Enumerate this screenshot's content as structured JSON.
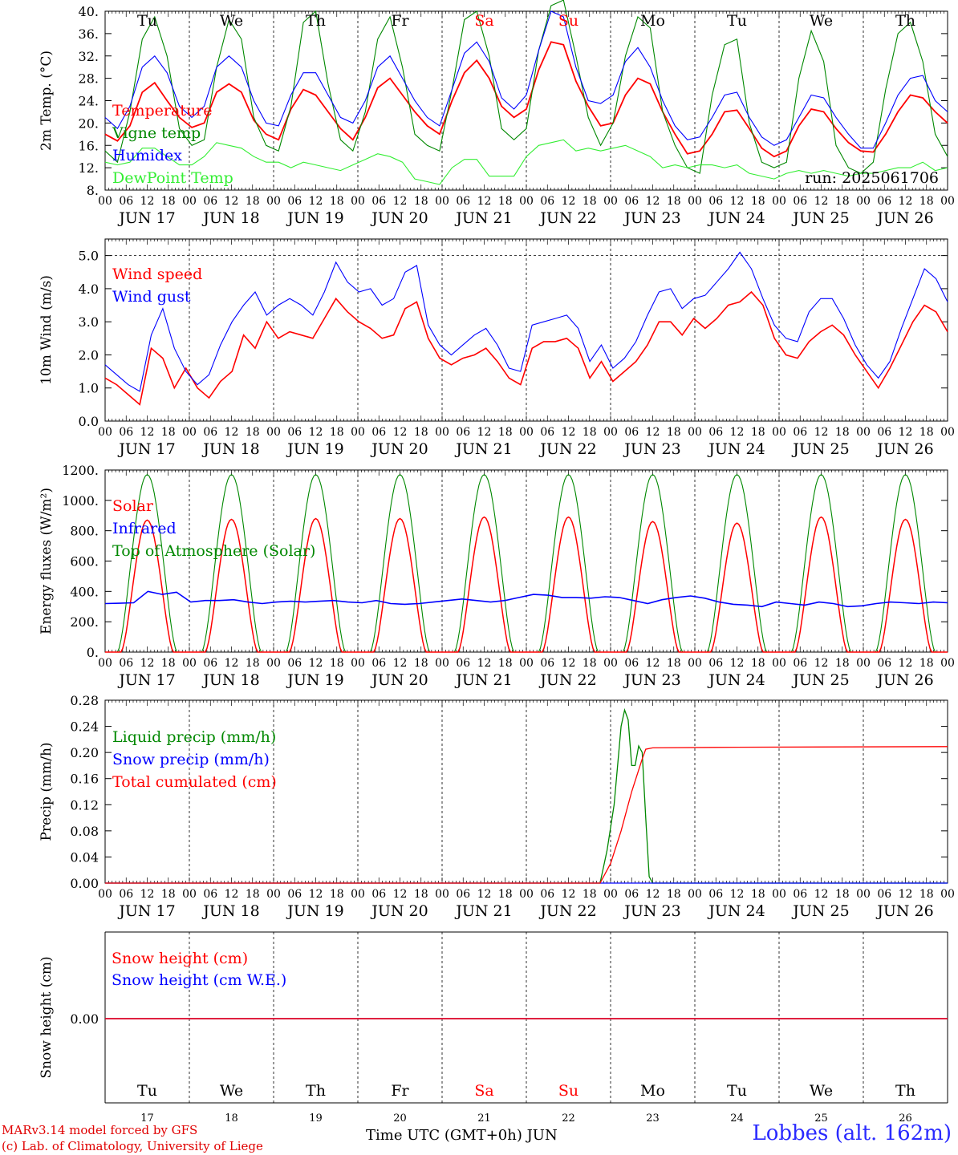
{
  "footer": {
    "model": "MARv3.14 model forced by GFS",
    "lab": "(c) Lab. of Climatology, University of Liege",
    "axis_label": "Time UTC (GMT+0h) JUN",
    "station": "Lobbes (alt. 162m)"
  },
  "colors": {
    "red": "#ff0000",
    "green": "#008800",
    "blue": "#0000ff",
    "lightgreen": "#33ee33",
    "weekend": "#ff0000"
  },
  "chart_data": [
    {
      "type": "line",
      "ylabel": "2m Temp. (°C)",
      "ylim": [
        8,
        40
      ],
      "yticks": [
        "8.",
        "12.",
        "16.",
        "20.",
        "24.",
        "28.",
        "32.",
        "36.",
        "40."
      ],
      "weekday_labels_top": [
        "Tu",
        "We",
        "Th",
        "Fr",
        "Sa",
        "Su",
        "Mo",
        "Tu",
        "We",
        "Th"
      ],
      "annotation": "run: 2025061706",
      "x_hours": "0 to 240 every 6 hours from JUN 17 00 UTC",
      "series": [
        {
          "name": "Temperature",
          "color": "red",
          "values": [
            18,
            16.8,
            19.5,
            25.5,
            27.2,
            24,
            21,
            19.2,
            20,
            25.5,
            27,
            25.5,
            20.5,
            18,
            17,
            22.5,
            26,
            25,
            22,
            19,
            17,
            21,
            26.3,
            28,
            25,
            22,
            19.5,
            18,
            24,
            29,
            31.2,
            28,
            23,
            21,
            22.5,
            29.5,
            34.5,
            34,
            27.5,
            23,
            19.5,
            20,
            25,
            28,
            27,
            22,
            18,
            14.5,
            15,
            18,
            22,
            22.3,
            19,
            15.5,
            14,
            15,
            19.5,
            22.5,
            22,
            19,
            16.5,
            15,
            14.8,
            18,
            22,
            25,
            24.5,
            22,
            20
          ]
        },
        {
          "name": "Vigne temp",
          "color": "green",
          "values": [
            15,
            13,
            22,
            35,
            39,
            32,
            19,
            16,
            17,
            30,
            38.5,
            35,
            21,
            16,
            15,
            23,
            38,
            40,
            27,
            17,
            15,
            22,
            35,
            39,
            30,
            18,
            16,
            15,
            26,
            38.5,
            40,
            32,
            19,
            17,
            19,
            33,
            41,
            42,
            32,
            21,
            16,
            20,
            32,
            39,
            37,
            22,
            16,
            12,
            11,
            25,
            34,
            35,
            20,
            13,
            12,
            13,
            28,
            36.5,
            31,
            16,
            12,
            11,
            13,
            26,
            36,
            38,
            31,
            18,
            14
          ]
        },
        {
          "name": "Humidex",
          "color": "blue",
          "values": [
            21,
            19,
            23,
            30,
            32,
            29,
            23,
            21,
            23,
            30,
            32,
            30,
            24,
            20,
            19.5,
            25,
            29,
            29,
            25,
            21,
            20,
            24,
            30,
            32,
            28,
            24,
            21,
            19.5,
            26,
            32.5,
            34.5,
            31,
            24.5,
            22.5,
            25,
            33,
            40,
            39,
            30,
            24,
            23.5,
            25,
            31,
            33.5,
            30,
            24,
            19.5,
            17,
            17.5,
            21,
            25,
            25.5,
            21,
            17.5,
            16,
            17,
            21,
            25,
            24.5,
            21,
            18,
            15.5,
            15.5,
            20,
            25,
            28,
            28.5,
            24,
            22
          ]
        },
        {
          "name": "DewPoint Temp",
          "color": "lightgreen",
          "values": [
            13,
            12.5,
            13,
            15.5,
            15.5,
            14,
            12.5,
            12.5,
            14,
            16.5,
            16,
            15.5,
            14,
            13,
            13,
            12,
            13,
            12.5,
            12,
            11.5,
            12.5,
            13.5,
            14.5,
            14,
            13,
            10,
            9.5,
            9,
            12,
            13.5,
            13.5,
            10.5,
            10.5,
            10.5,
            14,
            16,
            16.5,
            17,
            15,
            15.5,
            15,
            15.5,
            16,
            15,
            14,
            12,
            12.5,
            12,
            12.5,
            12.5,
            12,
            12.5,
            11,
            10.5,
            10,
            11,
            11.5,
            11,
            11.5,
            11,
            10.5,
            11,
            11,
            11.5,
            12,
            12,
            13,
            11.5,
            12
          ]
        }
      ]
    },
    {
      "type": "line",
      "ylabel": "10m Wind (m/s)",
      "ylim": [
        0,
        5.5
      ],
      "yticks": [
        "0.0",
        "1.0",
        "2.0",
        "3.0",
        "4.0",
        "5.0"
      ],
      "reference_line": 5.0,
      "series": [
        {
          "name": "Wind speed",
          "color": "red",
          "values": [
            1.3,
            1.1,
            0.8,
            0.5,
            2.2,
            1.9,
            1.0,
            1.6,
            1.0,
            0.7,
            1.2,
            1.5,
            2.6,
            2.2,
            3.0,
            2.5,
            2.7,
            2.6,
            2.5,
            3.1,
            3.7,
            3.3,
            3.0,
            2.8,
            2.5,
            2.6,
            3.4,
            3.6,
            2.5,
            1.9,
            1.7,
            1.9,
            2.0,
            2.2,
            1.8,
            1.3,
            1.1,
            2.2,
            2.4,
            2.4,
            2.5,
            2.2,
            1.3,
            1.8,
            1.2,
            1.5,
            1.8,
            2.3,
            3.0,
            3.0,
            2.6,
            3.1,
            2.8,
            3.1,
            3.5,
            3.6,
            3.9,
            3.5,
            2.5,
            2.0,
            1.9,
            2.4,
            2.7,
            2.9,
            2.6,
            2.0,
            1.5,
            1.0,
            1.6,
            2.3,
            3.0,
            3.5,
            3.3,
            2.7
          ]
        },
        {
          "name": "Wind gust",
          "color": "blue",
          "values": [
            1.7,
            1.4,
            1.1,
            0.9,
            2.6,
            3.4,
            2.2,
            1.5,
            1.1,
            1.4,
            2.3,
            3.0,
            3.5,
            3.9,
            3.2,
            3.5,
            3.7,
            3.5,
            3.2,
            3.9,
            4.8,
            4.2,
            3.9,
            4.0,
            3.5,
            3.7,
            4.5,
            4.7,
            2.9,
            2.3,
            2.0,
            2.3,
            2.6,
            2.8,
            2.3,
            1.6,
            1.5,
            2.9,
            3.0,
            3.1,
            3.2,
            2.8,
            1.8,
            2.3,
            1.6,
            1.9,
            2.4,
            3.2,
            3.9,
            4.0,
            3.4,
            3.7,
            3.8,
            4.2,
            4.6,
            5.1,
            4.6,
            3.7,
            2.9,
            2.5,
            2.4,
            3.3,
            3.7,
            3.7,
            3.1,
            2.3,
            1.7,
            1.3,
            1.8,
            2.8,
            3.7,
            4.6,
            4.3,
            3.6
          ]
        }
      ]
    },
    {
      "type": "line",
      "ylabel": "Energy fluxes (W/m²)",
      "ylim": [
        0,
        1200
      ],
      "yticks": [
        "0.",
        "200.",
        "400.",
        "600.",
        "800.",
        "1000.",
        "1200."
      ],
      "series": [
        {
          "name": "Solar",
          "color": "red",
          "daily_peak": [
            870,
            875,
            880,
            880,
            890,
            890,
            860,
            850,
            890,
            875
          ],
          "note": "diurnal cycle zero at night"
        },
        {
          "name": "Infrared",
          "color": "blue",
          "values": [
            320,
            322,
            325,
            400,
            380,
            395,
            330,
            340,
            340,
            345,
            330,
            320,
            330,
            335,
            330,
            335,
            340,
            330,
            325,
            340,
            320,
            315,
            320,
            330,
            340,
            350,
            340,
            330,
            340,
            360,
            380,
            375,
            360,
            360,
            355,
            365,
            360,
            340,
            320,
            345,
            360,
            370,
            355,
            330,
            315,
            310,
            300,
            330,
            320,
            310,
            330,
            320,
            300,
            305,
            320,
            330,
            325,
            320,
            330,
            325
          ]
        },
        {
          "name": "Top of Atmosphere (Solar)",
          "color": "green",
          "daily_peak": [
            1170,
            1170,
            1170,
            1170,
            1170,
            1170,
            1170,
            1170,
            1170,
            1170
          ],
          "note": "diurnal cycle zero at night"
        }
      ]
    },
    {
      "type": "line",
      "ylabel": "Precip (mm/h)",
      "ylim": [
        0,
        0.28
      ],
      "yticks": [
        "0.00",
        "0.04",
        "0.08",
        "0.12",
        "0.16",
        "0.20",
        "0.24",
        "0.28"
      ],
      "series": [
        {
          "name": "Liquid precip (mm/h)",
          "color": "green",
          "points": [
            [
              0,
              0
            ],
            [
              141,
              0
            ],
            [
              143,
              0.05
            ],
            [
              145,
              0.12
            ],
            [
              147,
              0.24
            ],
            [
              148,
              0.265
            ],
            [
              149,
              0.25
            ],
            [
              150,
              0.18
            ],
            [
              151,
              0.18
            ],
            [
              152,
              0.21
            ],
            [
              153,
              0.2
            ],
            [
              154,
              0.1
            ],
            [
              155,
              0.01
            ],
            [
              156,
              0
            ],
            [
              240,
              0
            ]
          ]
        },
        {
          "name": "Snow precip (mm/h)",
          "color": "blue",
          "points": [
            [
              0,
              0
            ],
            [
              240,
              0
            ]
          ]
        },
        {
          "name": "Total cumulated (cm)",
          "color": "red",
          "points": [
            [
              0,
              0
            ],
            [
              141,
              0
            ],
            [
              144,
              0.03
            ],
            [
              147,
              0.08
            ],
            [
              150,
              0.14
            ],
            [
              153,
              0.19
            ],
            [
              154,
              0.205
            ],
            [
              156,
              0.207
            ],
            [
              180,
              0.208
            ],
            [
              240,
              0.209
            ]
          ]
        }
      ]
    },
    {
      "type": "line",
      "ylabel": "Snow height (cm)",
      "yticks": [
        "0.00"
      ],
      "weekday_labels_bottom": [
        "Tu",
        "We",
        "Th",
        "Fr",
        "Sa",
        "Su",
        "Mo",
        "Tu",
        "We",
        "Th"
      ],
      "day_numbers": [
        "17",
        "18",
        "19",
        "20",
        "21",
        "22",
        "23",
        "24",
        "25",
        "26"
      ],
      "series": [
        {
          "name": "Snow height (cm)",
          "color": "red",
          "points": [
            [
              0,
              0
            ],
            [
              240,
              0
            ]
          ]
        },
        {
          "name": "Snow height (cm W.E.)",
          "color": "blue",
          "points": [
            [
              0,
              0
            ],
            [
              240,
              0
            ]
          ]
        }
      ]
    }
  ],
  "x_axis": {
    "hour_ticks": [
      "00",
      "06",
      "12",
      "18"
    ],
    "date_labels": [
      "JUN 17",
      "JUN 18",
      "JUN 19",
      "JUN 20",
      "JUN 21",
      "JUN 22",
      "JUN 23",
      "JUN 24",
      "JUN 25",
      "JUN 26"
    ],
    "weekend_days": [
      "Sa",
      "Su"
    ]
  }
}
